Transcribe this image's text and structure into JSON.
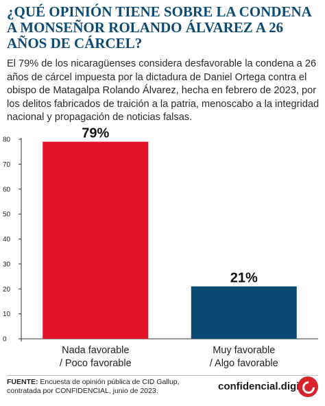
{
  "header": {
    "title": "¿QUÉ OPINIÓN TIENE SOBRE LA CONDENA A MONSEÑOR ROLANDO ÁLVAREZ A 26 AÑOS DE CÁRCEL?",
    "intro": "El 79% de los nicaragüenses considera desfavorable la condena a 26 años de cárcel impuesta por la dictadura de Daniel Ortega contra el obispo de Matagalpa Rolando Álvarez, hecha en febrero de 2023, por los delitos fabricados de traición a la patria, menoscabo a la integridad nacional y propagación de noticias falsas."
  },
  "chart_data": {
    "type": "bar",
    "categories": [
      [
        "Nada favorable",
        "/ Poco favorable"
      ],
      [
        "Muy favorable",
        "/ Algo favorable"
      ]
    ],
    "values": [
      79,
      21
    ],
    "data_labels": [
      "79%",
      "21%"
    ],
    "colors": [
      "#e3132b",
      "#0b4a73"
    ],
    "ylim": [
      0,
      80
    ],
    "yticks": [
      0,
      10,
      20,
      30,
      40,
      50,
      60,
      70,
      80
    ],
    "grid": false
  },
  "footer": {
    "source_label": "FUENTE:",
    "source_text": " Encuesta de opinión pública de CID Gallup, contratada por CONFIDENCIAL, junio de 2023.",
    "brand": "confidencial.digital",
    "logo_icon": "confidencial-c-logo-icon"
  }
}
